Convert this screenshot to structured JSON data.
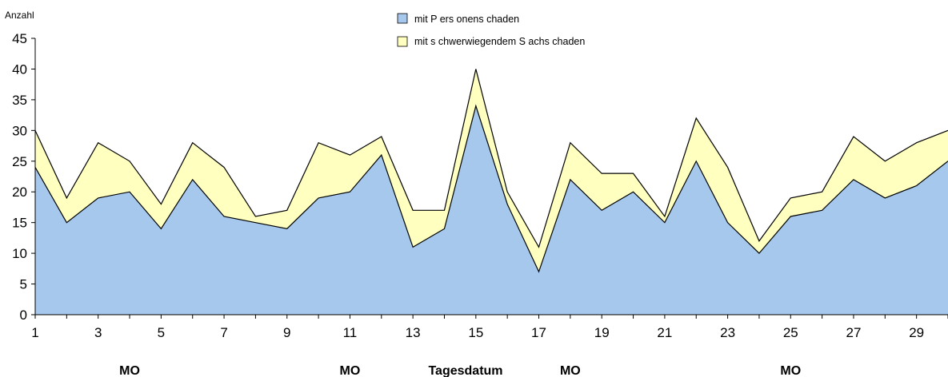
{
  "chart_data": {
    "type": "area",
    "stacked": true,
    "x": [
      1,
      2,
      3,
      4,
      5,
      6,
      7,
      8,
      9,
      10,
      11,
      12,
      13,
      14,
      15,
      16,
      17,
      18,
      19,
      20,
      21,
      22,
      23,
      24,
      25,
      26,
      27,
      28,
      29,
      30
    ],
    "series": [
      {
        "name": "mit P ers onens chaden",
        "color": "#a6c8ed",
        "values": [
          24,
          15,
          19,
          20,
          14,
          22,
          16,
          15,
          14,
          19,
          20,
          26,
          11,
          14,
          34,
          18,
          7,
          22,
          17,
          20,
          15,
          25,
          15,
          10,
          16,
          17,
          22,
          19,
          21,
          25
        ]
      },
      {
        "name": "mit s chwerwiegendem S achs chaden",
        "color": "#ffffc0",
        "values": [
          6,
          4,
          9,
          5,
          4,
          6,
          8,
          1,
          3,
          9,
          6,
          3,
          6,
          3,
          6,
          2,
          4,
          6,
          6,
          3,
          1,
          7,
          9,
          2,
          3,
          3,
          7,
          6,
          7,
          5
        ]
      }
    ],
    "totals": [
      30,
      19,
      28,
      25,
      18,
      28,
      24,
      16,
      17,
      28,
      26,
      29,
      17,
      17,
      40,
      20,
      11,
      28,
      23,
      23,
      16,
      32,
      24,
      12,
      19,
      20,
      29,
      25,
      28,
      30
    ],
    "xlabel": "Tagesdatum",
    "ylabel": "Anzahl",
    "ylim": [
      0,
      45
    ],
    "yticks": [
      0,
      5,
      10,
      15,
      20,
      25,
      30,
      35,
      40,
      45
    ],
    "xtick_labels": [
      "1",
      "3",
      "5",
      "7",
      "9",
      "11",
      "13",
      "15",
      "17",
      "19",
      "21",
      "23",
      "25",
      "27",
      "29"
    ],
    "weekday_markers": [
      {
        "label": "MO",
        "day": 4
      },
      {
        "label": "MO",
        "day": 11
      },
      {
        "label": "MO",
        "day": 18
      },
      {
        "label": "MO",
        "day": 25
      }
    ],
    "legend_placement": "top-center",
    "grid": false
  }
}
